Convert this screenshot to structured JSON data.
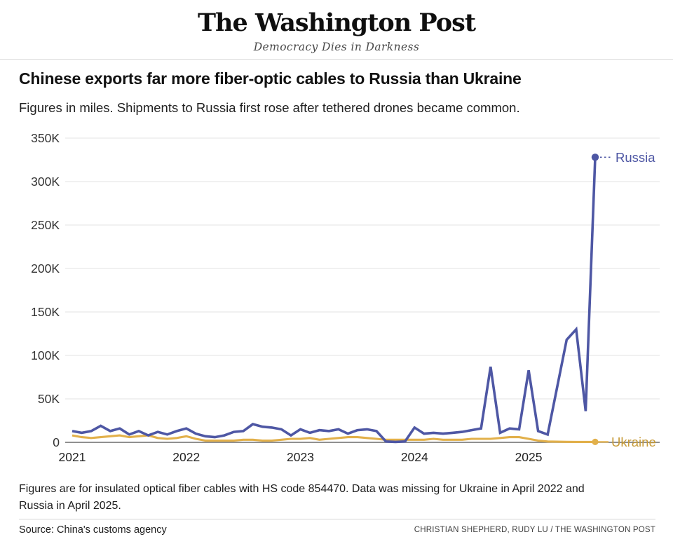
{
  "masthead": {
    "title": "The Washington Post",
    "tagline": "Democracy Dies in Darkness"
  },
  "headline": "Chinese exports far more fiber-optic cables to Russia than Ukraine",
  "subhead": "Figures in miles. Shipments to Russia first rose after tethered drones became common.",
  "footnote": "Figures are for insulated optical fiber cables with HS code 854470. Data was missing for Ukraine in April 2022 and Russia in April 2025.",
  "source": "Source: China's customs agency",
  "credit": "CHRISTIAN SHEPHERD, RUDY LU / THE WASHINGTON POST",
  "chart_data": {
    "type": "line",
    "title": "Chinese exports far more fiber-optic cables to Russia than Ukraine",
    "xlabel": "",
    "ylabel": "",
    "unit": "miles (values stored in thousands)",
    "ylim_k": [
      0,
      350
    ],
    "grid": true,
    "legend_position": "end-of-line labels",
    "yticks": [
      {
        "v": 0,
        "label": "0"
      },
      {
        "v": 50,
        "label": "50K"
      },
      {
        "v": 100,
        "label": "100K"
      },
      {
        "v": 150,
        "label": "150K"
      },
      {
        "v": 200,
        "label": "200K"
      },
      {
        "v": 250,
        "label": "250K"
      },
      {
        "v": 300,
        "label": "300K"
      },
      {
        "v": 350,
        "label": "350K"
      }
    ],
    "xticks": [
      {
        "m": 0,
        "label": "2021"
      },
      {
        "m": 12,
        "label": "2022"
      },
      {
        "m": 24,
        "label": "2023"
      },
      {
        "m": 36,
        "label": "2024"
      },
      {
        "m": 48,
        "label": "2025"
      }
    ],
    "x_months": [
      "2021-01",
      "2021-02",
      "2021-03",
      "2021-04",
      "2021-05",
      "2021-06",
      "2021-07",
      "2021-08",
      "2021-09",
      "2021-10",
      "2021-11",
      "2021-12",
      "2022-01",
      "2022-02",
      "2022-03",
      "2022-04",
      "2022-05",
      "2022-06",
      "2022-07",
      "2022-08",
      "2022-09",
      "2022-10",
      "2022-11",
      "2022-12",
      "2023-01",
      "2023-02",
      "2023-03",
      "2023-04",
      "2023-05",
      "2023-06",
      "2023-07",
      "2023-08",
      "2023-09",
      "2023-10",
      "2023-11",
      "2023-12",
      "2024-01",
      "2024-02",
      "2024-03",
      "2024-04",
      "2024-05",
      "2024-06",
      "2024-07",
      "2024-08",
      "2024-09",
      "2024-10",
      "2024-11",
      "2024-12",
      "2025-01",
      "2025-02",
      "2025-03",
      "2025-04",
      "2025-05",
      "2025-06",
      "2025-07",
      "2025-08"
    ],
    "series": [
      {
        "name": "Russia",
        "color": "#4e57a4",
        "label_color": "#4e57a4",
        "values_k": [
          13,
          11,
          13,
          19,
          13,
          16,
          9,
          13,
          8,
          12,
          9,
          13,
          16,
          10,
          7,
          6,
          8,
          12,
          13,
          21,
          18,
          17,
          15,
          8,
          15,
          11,
          14,
          13,
          15,
          10,
          14,
          15,
          13,
          1,
          0.5,
          1,
          17,
          10,
          11,
          10,
          11,
          12,
          14,
          16,
          87,
          11,
          16,
          15,
          83,
          13,
          9,
          null,
          118,
          130,
          36,
          328
        ]
      },
      {
        "name": "Ukraine",
        "color": "#e2b04a",
        "label_color": "#c79b38",
        "values_k": [
          8,
          6,
          5,
          6,
          7,
          8,
          6,
          7,
          8,
          5,
          4,
          5,
          7,
          4,
          2,
          null,
          2,
          2,
          3,
          3,
          2,
          2,
          3,
          4,
          4,
          5,
          3,
          4,
          5,
          6,
          6,
          5,
          4,
          3,
          3,
          3,
          3,
          3,
          4,
          3,
          3,
          3,
          4,
          4,
          4,
          5,
          6,
          6,
          4,
          2,
          1,
          0.7,
          0.6,
          0.5,
          0.5,
          0.5
        ]
      }
    ],
    "missing_data": {
      "Ukraine": "2022-04",
      "Russia": "2025-04"
    }
  }
}
